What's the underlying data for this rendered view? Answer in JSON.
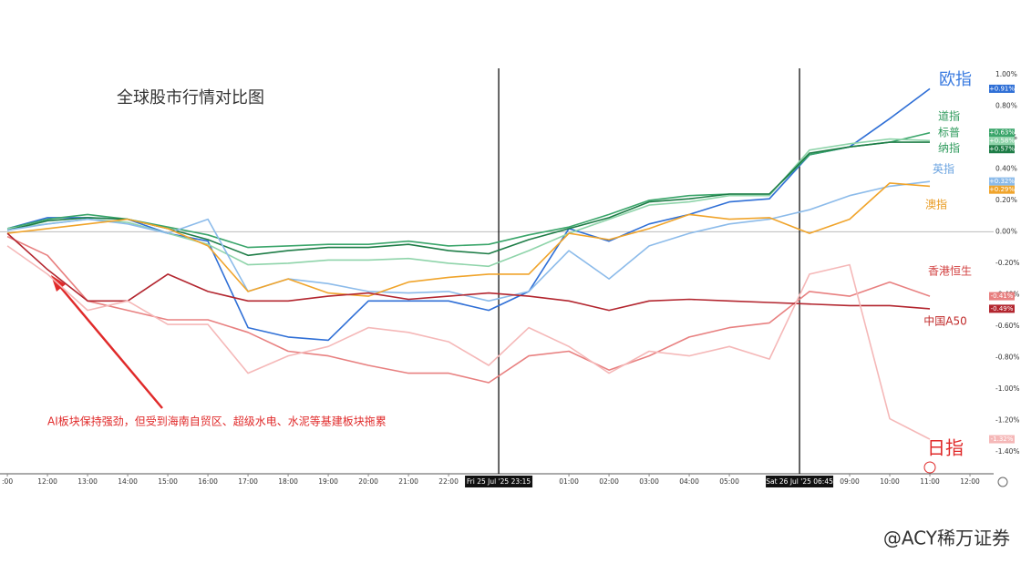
{
  "chart_data": {
    "type": "line",
    "title": "全球股市行情对比图",
    "annotation": "AI板块保持强劲，但受到海南自贸区、超级水电、水泥等基建板块拖累",
    "watermark": "@ACY稀万证券",
    "x": [
      11,
      12,
      13,
      14,
      15,
      16,
      17,
      18,
      19,
      20,
      21,
      22,
      23,
      24,
      25,
      26,
      27,
      28,
      29,
      30,
      31,
      32,
      33,
      34
    ],
    "xlim": [
      10.93,
      35.59
    ],
    "xticks": [
      {
        "value": 11,
        "label": ":00"
      },
      {
        "value": 12,
        "label": "12:00"
      },
      {
        "value": 13,
        "label": "13:00"
      },
      {
        "value": 14,
        "label": "14:00"
      },
      {
        "value": 15,
        "label": "15:00"
      },
      {
        "value": 16,
        "label": "16:00"
      },
      {
        "value": 17,
        "label": "17:00"
      },
      {
        "value": 18,
        "label": "18:00"
      },
      {
        "value": 19,
        "label": "19:00"
      },
      {
        "value": 20,
        "label": "20:00"
      },
      {
        "value": 21,
        "label": "21:00"
      },
      {
        "value": 22,
        "label": "22:00"
      },
      {
        "value": 23.25,
        "label": "Fri 25 Jul '25  23:15"
      },
      {
        "value": 25,
        "label": "01:00"
      },
      {
        "value": 26,
        "label": "02:00"
      },
      {
        "value": 27,
        "label": "03:00"
      },
      {
        "value": 28,
        "label": "04:00"
      },
      {
        "value": 29,
        "label": "05:00"
      },
      {
        "value": 30.75,
        "label": "Sat 26 Jul '25  06:45"
      },
      {
        "value": 32,
        "label": "09:00"
      },
      {
        "value": 33,
        "label": "10:00"
      },
      {
        "value": 34,
        "label": "11:00"
      },
      {
        "value": 35,
        "label": "12:00"
      }
    ],
    "ylim": [
      -1.54,
      1.04
    ],
    "yticks": [
      {
        "value": -1.4,
        "label": "-1.40%"
      },
      {
        "value": -1.2,
        "label": "-1.20%"
      },
      {
        "value": -1.0,
        "label": "-1.00%"
      },
      {
        "value": -0.8,
        "label": "-0.80%"
      },
      {
        "value": -0.6,
        "label": "-0.60%"
      },
      {
        "value": -0.4,
        "label": "-0.40%"
      },
      {
        "value": -0.2,
        "label": "-0.20%"
      },
      {
        "value": 0,
        "label": "0.00%"
      },
      {
        "value": 0.2,
        "label": "0.20%"
      },
      {
        "value": 0.4,
        "label": "0.40%"
      },
      {
        "value": 0.6,
        "label": "0.60%"
      },
      {
        "value": 0.8,
        "label": "0.80%"
      },
      {
        "value": 1.0,
        "label": "1.00%"
      }
    ],
    "series": [
      {
        "name": "欧指",
        "color": "#2f6fd6",
        "values": [
          0.02,
          0.09,
          0.09,
          0.08,
          -0.01,
          -0.06,
          -0.61,
          -0.67,
          -0.69,
          -0.44,
          -0.44,
          -0.44,
          -0.5,
          -0.38,
          0.02,
          -0.06,
          0.05,
          0.11,
          0.19,
          0.21,
          0.49,
          0.54,
          0.72,
          0.91
        ],
        "value_labels": [
          null,
          null,
          null,
          null,
          null,
          null,
          null,
          null,
          null,
          null,
          null,
          null,
          null,
          null,
          null,
          null,
          null,
          null,
          null,
          null,
          null,
          null,
          null,
          "+0.91%"
        ]
      },
      {
        "name": "道指",
        "color": "#3aa56a",
        "values": [
          0.02,
          0.08,
          0.11,
          0.08,
          0.03,
          -0.02,
          -0.1,
          -0.09,
          -0.08,
          -0.08,
          -0.06,
          -0.09,
          -0.08,
          -0.02,
          0.03,
          0.11,
          0.2,
          0.23,
          0.24,
          0.24,
          0.49,
          0.54,
          0.57,
          0.63
        ],
        "value_labels": [
          null,
          null,
          null,
          null,
          null,
          null,
          null,
          null,
          null,
          null,
          null,
          null,
          null,
          null,
          null,
          null,
          null,
          null,
          null,
          null,
          null,
          null,
          null,
          "+0.63%"
        ]
      },
      {
        "name": "标普",
        "color": "#8fd4aa",
        "values": [
          0.02,
          0.05,
          0.08,
          0.06,
          -0.01,
          -0.08,
          -0.21,
          -0.2,
          -0.18,
          -0.18,
          -0.17,
          -0.2,
          -0.22,
          -0.12,
          -0.01,
          0.08,
          0.17,
          0.19,
          0.23,
          0.23,
          0.52,
          0.56,
          0.59,
          0.58
        ],
        "value_labels": [
          null,
          null,
          null,
          null,
          null,
          null,
          null,
          null,
          null,
          null,
          null,
          null,
          null,
          null,
          null,
          null,
          null,
          null,
          null,
          null,
          null,
          null,
          null,
          "+0.58%"
        ]
      },
      {
        "name": "纳指",
        "color": "#1e7d47",
        "values": [
          0.01,
          0.07,
          0.09,
          0.08,
          0.02,
          -0.05,
          -0.15,
          -0.12,
          -0.1,
          -0.1,
          -0.08,
          -0.12,
          -0.14,
          -0.05,
          0.02,
          0.09,
          0.19,
          0.21,
          0.24,
          0.24,
          0.5,
          0.54,
          0.57,
          0.57
        ],
        "value_labels": [
          null,
          null,
          null,
          null,
          null,
          null,
          null,
          null,
          null,
          null,
          null,
          null,
          null,
          null,
          null,
          null,
          null,
          null,
          null,
          null,
          null,
          null,
          null,
          "+0.57%"
        ]
      },
      {
        "name": "英指",
        "color": "#8cbbea",
        "values": [
          0.01,
          0.05,
          0.08,
          0.05,
          -0.01,
          0.08,
          -0.38,
          -0.3,
          -0.33,
          -0.38,
          -0.39,
          -0.38,
          -0.44,
          -0.38,
          -0.12,
          -0.3,
          -0.09,
          -0.01,
          0.05,
          0.08,
          0.14,
          0.23,
          0.29,
          0.32
        ],
        "value_labels": [
          null,
          null,
          null,
          null,
          null,
          null,
          null,
          null,
          null,
          null,
          null,
          null,
          null,
          null,
          null,
          null,
          null,
          null,
          null,
          null,
          null,
          null,
          null,
          "+0.32%"
        ]
      },
      {
        "name": "澳指",
        "color": "#f0a42b",
        "values": [
          -0.01,
          0.02,
          0.05,
          0.08,
          0.02,
          -0.09,
          -0.38,
          -0.3,
          -0.39,
          -0.41,
          -0.32,
          -0.29,
          -0.27,
          -0.27,
          -0.01,
          -0.05,
          0.02,
          0.11,
          0.08,
          0.09,
          -0.01,
          0.08,
          0.31,
          0.29
        ],
        "value_labels": [
          null,
          null,
          null,
          null,
          null,
          null,
          null,
          null,
          null,
          null,
          null,
          null,
          null,
          null,
          null,
          null,
          null,
          null,
          null,
          null,
          null,
          null,
          null,
          "+0.29%"
        ]
      },
      {
        "name": "香港恒生",
        "color": "#e88080",
        "values": [
          -0.03,
          -0.15,
          -0.44,
          -0.5,
          -0.56,
          -0.56,
          -0.64,
          -0.76,
          -0.79,
          -0.85,
          -0.9,
          -0.9,
          -0.96,
          -0.79,
          -0.76,
          -0.88,
          -0.79,
          -0.67,
          -0.61,
          -0.58,
          -0.38,
          -0.41,
          -0.32,
          -0.41
        ],
        "value_labels": [
          null,
          null,
          null,
          null,
          null,
          null,
          null,
          null,
          null,
          null,
          null,
          null,
          null,
          null,
          null,
          null,
          null,
          null,
          null,
          null,
          null,
          null,
          null,
          "-0.41%"
        ]
      },
      {
        "name": "中国A50",
        "color": "#b3262f",
        "values": [
          -0.01,
          -0.24,
          -0.44,
          -0.44,
          -0.27,
          -0.38,
          -0.44,
          -0.44,
          -0.41,
          -0.39,
          -0.43,
          -0.41,
          -0.39,
          -0.41,
          -0.44,
          -0.5,
          -0.44,
          -0.43,
          -0.44,
          -0.45,
          -0.46,
          -0.47,
          -0.47,
          -0.49
        ],
        "value_labels": [
          null,
          null,
          null,
          null,
          null,
          null,
          null,
          null,
          null,
          null,
          null,
          null,
          null,
          null,
          null,
          null,
          null,
          null,
          null,
          null,
          null,
          null,
          null,
          "-0.49%"
        ]
      },
      {
        "name": "日指",
        "color": "#f5b8b8",
        "values": [
          -0.09,
          -0.27,
          -0.5,
          -0.44,
          -0.59,
          -0.59,
          -0.9,
          -0.79,
          -0.73,
          -0.61,
          -0.64,
          -0.7,
          -0.85,
          -0.61,
          -0.73,
          -0.9,
          -0.76,
          -0.79,
          -0.73,
          -0.81,
          -0.27,
          -0.21,
          -1.19,
          -1.32
        ],
        "value_labels": [
          null,
          null,
          null,
          null,
          null,
          null,
          null,
          null,
          null,
          null,
          null,
          null,
          null,
          null,
          null,
          null,
          null,
          null,
          null,
          null,
          null,
          null,
          null,
          "-1.32%"
        ]
      }
    ]
  }
}
